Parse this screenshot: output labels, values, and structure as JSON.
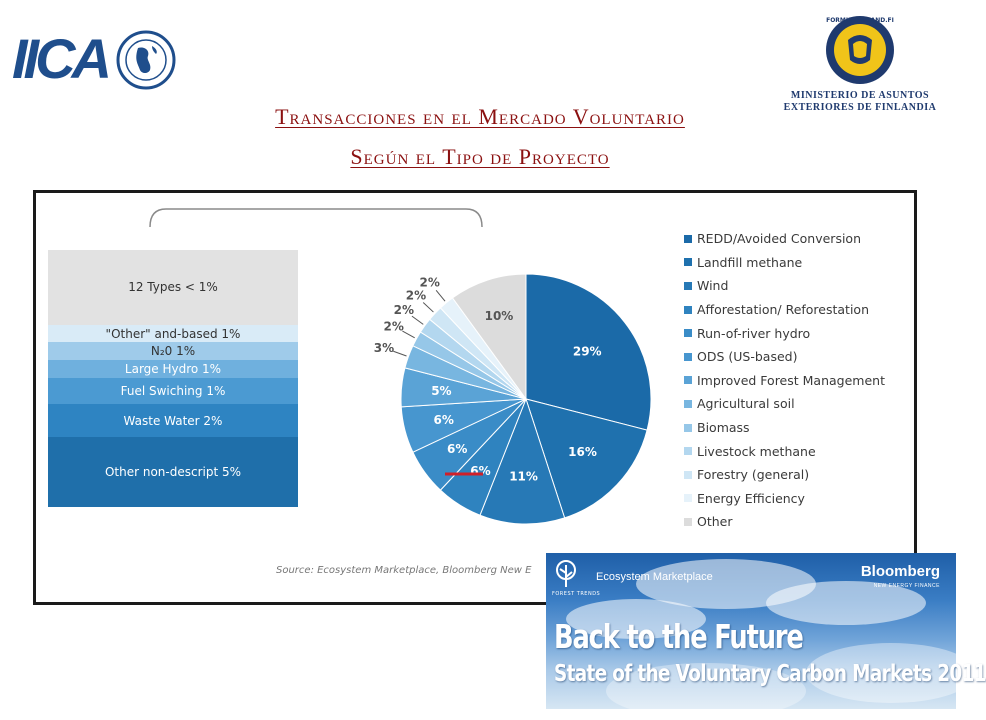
{
  "header": {
    "iica_logo_text": "IICA",
    "formin_seal_text": "FORMIN·FINLAND.FI",
    "formin_line1": "MINISTERIO DE ASUNTOS",
    "formin_line2": "EXTERIORES DE FINLANDIA"
  },
  "title": {
    "line1": "Transacciones en el Mercado Voluntario",
    "line2": "Según el Tipo de Proyecto"
  },
  "colors": {
    "title": "#8b1010",
    "frame": "#1a1a1a",
    "highlight_mark": "#d0202a"
  },
  "chart_data": {
    "type": "pie",
    "slices": [
      {
        "name": "REDD/Avoided Conversion",
        "label": "29%",
        "value": 29,
        "color": "#1b6aa8"
      },
      {
        "name": "Landfill methane",
        "label": "16%",
        "value": 16,
        "color": "#1f71ae"
      },
      {
        "name": "Wind",
        "label": "11%",
        "value": 11,
        "color": "#2779b6"
      },
      {
        "name": "Afforestation/ Reforestation",
        "label": "6%",
        "value": 6,
        "color": "#2f83bf"
      },
      {
        "name": "Run-of-river hydro",
        "label": "6%",
        "value": 6,
        "color": "#3a8cc7"
      },
      {
        "name": "ODS (US-based)",
        "label": "6%",
        "value": 6,
        "color": "#4796cf"
      },
      {
        "name": "Improved Forest Management",
        "label": "5%",
        "value": 5,
        "color": "#5aa3d6"
      },
      {
        "name": "Agricultural soil",
        "label": "3%",
        "value": 3,
        "color": "#78b6e0"
      },
      {
        "name": "Biomass",
        "label": "2%",
        "value": 2,
        "color": "#96c7e8"
      },
      {
        "name": "Livestock methane",
        "label": "2%",
        "value": 2,
        "color": "#b3d7ef"
      },
      {
        "name": "Forestry (general)",
        "label": "2%",
        "value": 2,
        "color": "#cfe6f5"
      },
      {
        "name": "Energy Efficiency",
        "label": "2%",
        "value": 2,
        "color": "#e6f2fa"
      },
      {
        "name": "Other",
        "label": "10%",
        "value": 10,
        "color": "#dcdcdc"
      }
    ],
    "other_breakdown": [
      {
        "label": "12 Types < 1%",
        "value": 1,
        "color": "#e2e2e2",
        "text_color": "#333333"
      },
      {
        "label": "\"Other\" and-based 1%",
        "value": 1,
        "color": "#d9ebf7",
        "text_color": "#333333"
      },
      {
        "label": "N₂0 1%",
        "value": 1,
        "color": "#9fcbea",
        "text_color": "#333333"
      },
      {
        "label": "Large Hydro 1%",
        "value": 1,
        "color": "#6fb0de",
        "text_color": "#ffffff"
      },
      {
        "label": "Fuel Swiching 1%",
        "value": 1,
        "color": "#4b9ad2",
        "text_color": "#ffffff"
      },
      {
        "label": "Waste Water 2%",
        "value": 2,
        "color": "#2e84c2",
        "text_color": "#ffffff"
      },
      {
        "label": "Other non-descript 5%",
        "value": 5,
        "color": "#1f6faa",
        "text_color": "#ffffff"
      }
    ],
    "source": "Source: Ecosystem Marketplace, Bloomberg New E"
  },
  "cover": {
    "ft_text": "FOREST TRENDS",
    "ecosystem": "Ecosystem Marketplace",
    "bloomberg": "Bloomberg",
    "bloomberg_sub": "NEW ENERGY FINANCE",
    "title": "Back to the Future",
    "subtitle": "State of the Voluntary Carbon Markets 2011"
  }
}
